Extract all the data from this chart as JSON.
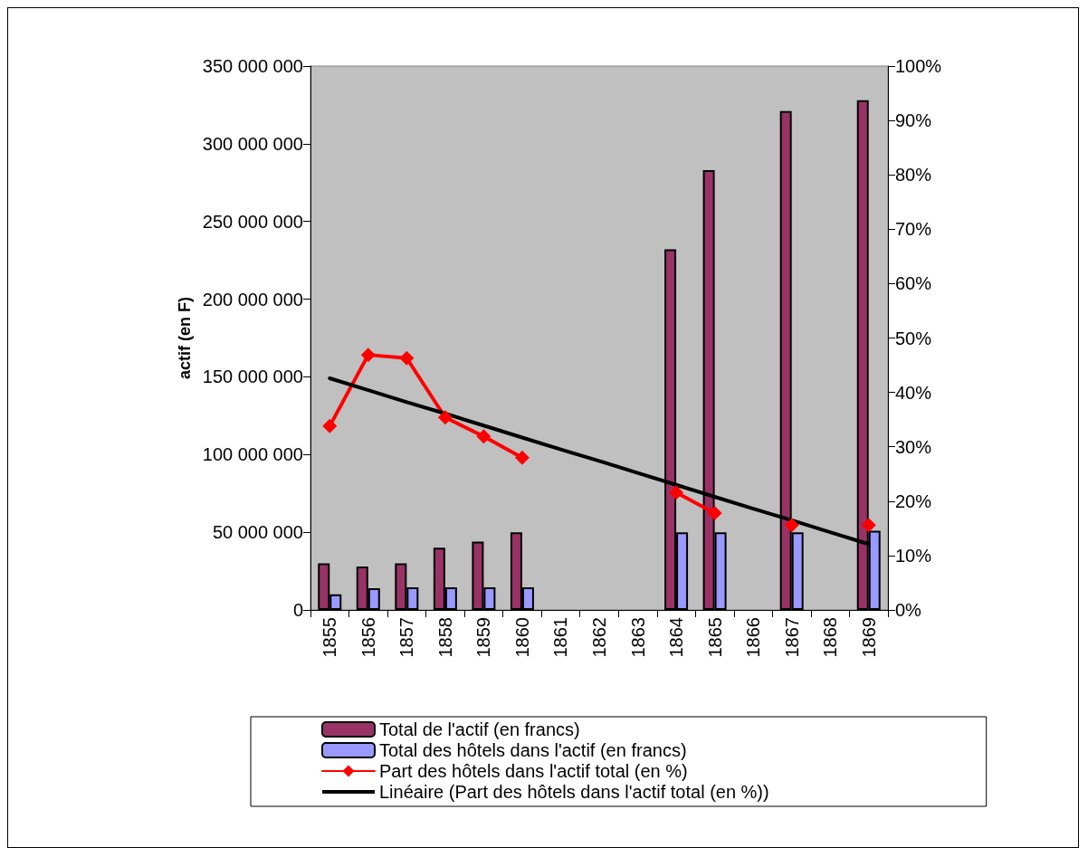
{
  "chart_data": {
    "type": "bar",
    "ylabel": "actif (en F)",
    "categories": [
      "1855",
      "1856",
      "1857",
      "1858",
      "1859",
      "1860",
      "1861",
      "1862",
      "1863",
      "1864",
      "1865",
      "1866",
      "1867",
      "1868",
      "1869"
    ],
    "series": [
      {
        "name": "Total de l'actif (en francs)",
        "color": "#993366",
        "values": [
          30000000,
          28000000,
          30000000,
          40000000,
          44000000,
          50000000,
          null,
          null,
          null,
          232000000,
          283000000,
          null,
          321000000,
          null,
          328000000
        ]
      },
      {
        "name": "Total des hôtels dans l'actif (en francs)",
        "color": "#9999ff",
        "values": [
          10000000,
          14000000,
          14500000,
          14500000,
          14500000,
          14500000,
          null,
          null,
          null,
          50000000,
          50000000,
          null,
          50000000,
          null,
          51000000
        ]
      },
      {
        "name": "Part des hôtels dans l'actif total (en %)",
        "type": "line",
        "axis": "y2",
        "color": "#ff0000",
        "marker": "diamond",
        "values": [
          33.8,
          46.9,
          46.3,
          35.4,
          31.9,
          28,
          null,
          null,
          null,
          21.6,
          17.8,
          null,
          15.6,
          null,
          15.6
        ]
      },
      {
        "name": "Linéaire (Part des hôtels dans l'actif total (en %))",
        "type": "line",
        "axis": "y2",
        "color": "#000000",
        "marker": "none",
        "values": [
          42.6,
          40.4,
          38.2,
          36.1,
          33.9,
          31.7,
          29.5,
          27.4,
          25.2,
          23.0,
          20.8,
          18.6,
          16.5,
          14.3,
          12.1
        ]
      }
    ],
    "ylim": [
      0,
      350000000
    ],
    "yticks": [
      {
        "value": 0,
        "label": "0"
      },
      {
        "value": 50000000,
        "label": "50 000 000"
      },
      {
        "value": 100000000,
        "label": "100 000 000"
      },
      {
        "value": 150000000,
        "label": "150 000 000"
      },
      {
        "value": 200000000,
        "label": "200 000 000"
      },
      {
        "value": 250000000,
        "label": "250 000 000"
      },
      {
        "value": 300000000,
        "label": "300 000 000"
      },
      {
        "value": 350000000,
        "label": "350 000 000"
      }
    ],
    "y2lim": [
      0,
      100
    ],
    "y2ticks": [
      {
        "value": 0,
        "label": "0%"
      },
      {
        "value": 10,
        "label": "10%"
      },
      {
        "value": 20,
        "label": "20%"
      },
      {
        "value": 30,
        "label": "30%"
      },
      {
        "value": 40,
        "label": "40%"
      },
      {
        "value": 50,
        "label": "50%"
      },
      {
        "value": 60,
        "label": "60%"
      },
      {
        "value": 70,
        "label": "70%"
      },
      {
        "value": 80,
        "label": "80%"
      },
      {
        "value": 90,
        "label": "90%"
      },
      {
        "value": 100,
        "label": "100%"
      }
    ],
    "grid": false,
    "legend": "bottom"
  }
}
